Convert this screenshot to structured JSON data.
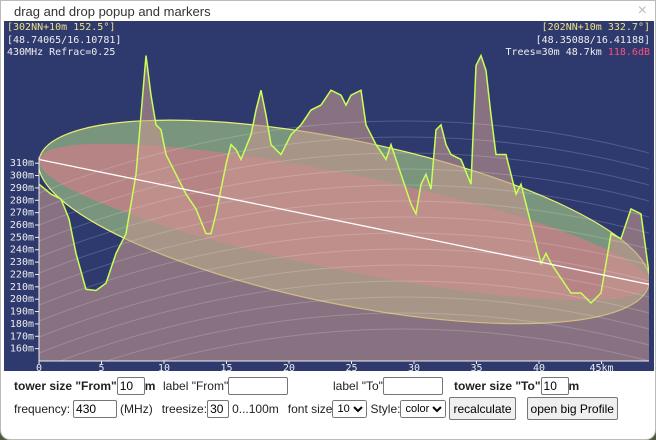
{
  "dialog": {
    "title": "drag and drop popup and markers",
    "close": "×"
  },
  "info": {
    "from_head": "[302NN+10m 152.5°]",
    "from_coords": "[48.74065/16.10781]",
    "freq_refrac": "430MHz Refrac=0.25",
    "to_head": "[202NN+10m 332.7°]",
    "to_coords": "[48.35088/16.41188]",
    "trees_dist": "Trees=30m 48.7km ",
    "loss": "118.6dB"
  },
  "colors": {
    "bg": "#2e3a6e",
    "profile": "#c8ff5a",
    "los": "#ffffff",
    "fresnel_outer": "#b9e08a",
    "fresnel_inner": "#e07a8a",
    "loss": "#ff4f7a",
    "heading": "#f0e080"
  },
  "chart_data": {
    "type": "area",
    "xlabel": "km",
    "ylabel": "m",
    "xlim": [
      0,
      48.8
    ],
    "ylim": [
      150,
      425
    ],
    "xticks": [
      0,
      5,
      10,
      15,
      20,
      25,
      30,
      35,
      40
    ],
    "xtick_last_label": "45km",
    "xtick_last": 45,
    "yticks": [
      160,
      170,
      180,
      190,
      200,
      210,
      220,
      230,
      240,
      250,
      260,
      270,
      280,
      290,
      300,
      310
    ],
    "ytick_suffix": "m",
    "los": {
      "from": [
        0,
        313
      ],
      "to": [
        48.8,
        212
      ]
    },
    "profile": [
      [
        0,
        293
      ],
      [
        0.96,
        285
      ],
      [
        1.76,
        281
      ],
      [
        2.4,
        265
      ],
      [
        2.96,
        237
      ],
      [
        3.76,
        208
      ],
      [
        4.56,
        207
      ],
      [
        5.36,
        213
      ],
      [
        6.16,
        237
      ],
      [
        6.96,
        253
      ],
      [
        7.76,
        301
      ],
      [
        8.16,
        349
      ],
      [
        8.56,
        397
      ],
      [
        8.96,
        365
      ],
      [
        9.36,
        341
      ],
      [
        9.76,
        337
      ],
      [
        10.16,
        317
      ],
      [
        10.96,
        301
      ],
      [
        11.76,
        285
      ],
      [
        12.56,
        273
      ],
      [
        13.36,
        253
      ],
      [
        13.76,
        253
      ],
      [
        14.16,
        269
      ],
      [
        14.96,
        309
      ],
      [
        15.36,
        325
      ],
      [
        15.76,
        321
      ],
      [
        16.16,
        313
      ],
      [
        16.96,
        333
      ],
      [
        17.36,
        353
      ],
      [
        17.76,
        369
      ],
      [
        18.16,
        349
      ],
      [
        18.56,
        325
      ],
      [
        19.36,
        317
      ],
      [
        20.16,
        333
      ],
      [
        20.96,
        341
      ],
      [
        21.76,
        353
      ],
      [
        22.56,
        357
      ],
      [
        23.36,
        369
      ],
      [
        24.16,
        365
      ],
      [
        24.56,
        357
      ],
      [
        24.96,
        365
      ],
      [
        25.76,
        369
      ],
      [
        26.16,
        341
      ],
      [
        26.96,
        325
      ],
      [
        27.76,
        313
      ],
      [
        28.16,
        325
      ],
      [
        28.96,
        301
      ],
      [
        29.76,
        277
      ],
      [
        30.16,
        269
      ],
      [
        30.56,
        293
      ],
      [
        30.96,
        301
      ],
      [
        31.36,
        289
      ],
      [
        31.76,
        337
      ],
      [
        32.16,
        341
      ],
      [
        32.56,
        325
      ],
      [
        32.96,
        317
      ],
      [
        33.76,
        313
      ],
      [
        34.56,
        293
      ],
      [
        34.96,
        389
      ],
      [
        35.36,
        397
      ],
      [
        35.76,
        385
      ],
      [
        36.16,
        349
      ],
      [
        36.56,
        317
      ],
      [
        37.36,
        317
      ],
      [
        37.76,
        301
      ],
      [
        38.16,
        285
      ],
      [
        38.56,
        293
      ],
      [
        39.36,
        261
      ],
      [
        40.16,
        229
      ],
      [
        40.56,
        237
      ],
      [
        40.96,
        229
      ],
      [
        41.76,
        217
      ],
      [
        42.56,
        205
      ],
      [
        43.36,
        205
      ],
      [
        44.16,
        197
      ],
      [
        44.96,
        205
      ],
      [
        45.36,
        229
      ],
      [
        45.76,
        253
      ],
      [
        46.56,
        249
      ],
      [
        47.36,
        273
      ],
      [
        48.16,
        269
      ],
      [
        48.8,
        221
      ]
    ]
  },
  "controls": {
    "tower_from_label": "tower size \"From\"",
    "tower_from_value": "10",
    "m1": "m",
    "label_from": "label \"From\"",
    "label_from_value": "",
    "label_to": "label \"To\"",
    "label_to_value": "",
    "tower_to_label": "tower size \"To\"",
    "tower_to_value": "10",
    "m2": "m",
    "freq_label": "frequency:",
    "freq_value": "430",
    "freq_unit": "(MHz)",
    "tree_label": "treesize:",
    "tree_value": "30",
    "tree_range": "0...100m",
    "font_label": "font size",
    "font_value": "10",
    "style_label": "Style:",
    "style_value": "color",
    "recalc": "recalculate",
    "open_big": "open big Profile"
  }
}
